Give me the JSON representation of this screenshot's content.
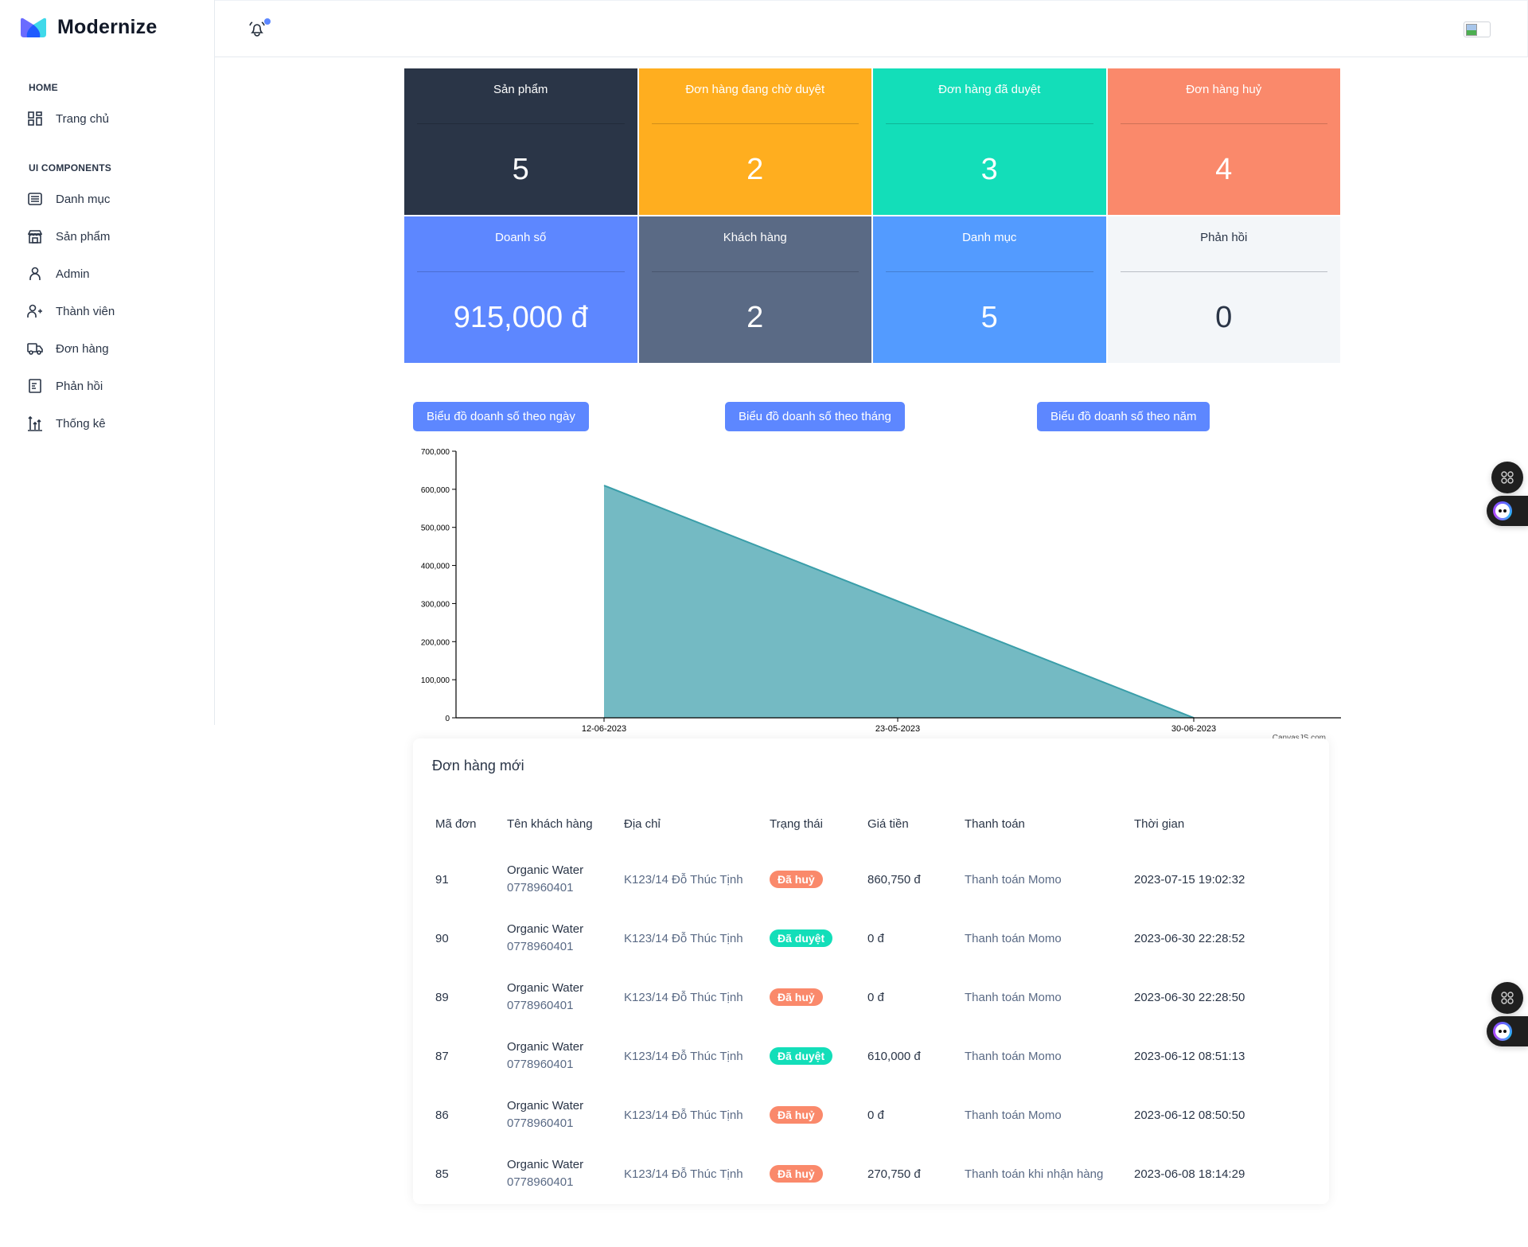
{
  "brand": {
    "name": "Modernize"
  },
  "sidebar": {
    "sections": [
      {
        "caption": "HOME",
        "items": [
          {
            "label": "Trang chủ",
            "icon": "dashboard-icon"
          }
        ]
      },
      {
        "caption": "UI COMPONENTS",
        "items": [
          {
            "label": "Danh mục",
            "icon": "article-icon"
          },
          {
            "label": "Sản phẩm",
            "icon": "building-store-icon"
          },
          {
            "label": "Admin",
            "icon": "user-icon"
          },
          {
            "label": "Thành viên",
            "icon": "user-plus-icon"
          },
          {
            "label": "Đơn hàng",
            "icon": "truck-icon"
          },
          {
            "label": "Phản hồi",
            "icon": "file-description-icon"
          },
          {
            "label": "Thống kê",
            "icon": "chart-arrows-icon"
          }
        ]
      }
    ]
  },
  "header": {
    "notification_icon": "bell-ringing-icon",
    "has_unread": true,
    "avatar": "broken-image-icon"
  },
  "stats": [
    {
      "title": "Sản phẩm",
      "value": "5",
      "bg": "#2a3547",
      "color": "#ffffff"
    },
    {
      "title": "Đơn hàng đang chờ duyệt",
      "value": "2",
      "bg": "#ffae1f",
      "color": "#ffffff"
    },
    {
      "title": "Đơn hàng đã duyệt",
      "value": "3",
      "bg": "#13deb9",
      "color": "#ffffff"
    },
    {
      "title": "Đơn hàng huỷ",
      "value": "4",
      "bg": "#fa896b",
      "color": "#ffffff"
    },
    {
      "title": "Doanh số",
      "value": "915,000 đ",
      "bg": "#5d87ff",
      "color": "#ffffff"
    },
    {
      "title": "Khách hàng",
      "value": "2",
      "bg": "#5a6a85",
      "color": "#ffffff"
    },
    {
      "title": "Danh mục",
      "value": "5",
      "bg": "#539bff",
      "color": "#ffffff"
    },
    {
      "title": "Phản hồi",
      "value": "0",
      "bg": "#f3f6f9",
      "color": "#2a3547"
    }
  ],
  "chart_buttons": [
    {
      "label": "Biểu đồ doanh số theo ngày"
    },
    {
      "label": "Biểu đồ doanh số theo tháng"
    },
    {
      "label": "Biểu đồ doanh số theo năm"
    }
  ],
  "chart_data": {
    "type": "area",
    "title": "",
    "xlabel": "",
    "ylabel": "",
    "categories": [
      "12-06-2023",
      "23-05-2023",
      "30-06-2023"
    ],
    "x_tick_labels": [
      "12-06-2023",
      "23-05-2023",
      "30-06-2023"
    ],
    "series": [
      {
        "name": "Doanh số",
        "x": [
          "12-06-2023",
          "30-06-2023"
        ],
        "values": [
          610000,
          0
        ],
        "color": "#74bac3",
        "line_color": "#3a9ea9"
      }
    ],
    "ylim": [
      0,
      700000
    ],
    "y_ticks": [
      0,
      100000,
      200000,
      300000,
      400000,
      500000,
      600000,
      700000
    ],
    "y_tick_labels": [
      "0",
      "100,000",
      "200,000",
      "300,000",
      "400,000",
      "500,000",
      "600,000",
      "700,000"
    ],
    "grid": false,
    "legend": "none",
    "credit": "CanvasJS.com"
  },
  "orders": {
    "title": "Đơn hàng mới",
    "columns": [
      "Mã đơn",
      "Tên khách hàng",
      "Địa chỉ",
      "Trạng thái",
      "Giá tiền",
      "Thanh toán",
      "Thời gian"
    ],
    "rows": [
      {
        "id": "91",
        "name": "Organic Water",
        "phone": "0778960401",
        "address": "K123/14 Đỗ Thúc Tịnh",
        "status": "Đã huỷ",
        "status_color": "#fa896b",
        "price": "860,750 đ",
        "payment": "Thanh toán Momo",
        "time": "2023-07-15 19:02:32"
      },
      {
        "id": "90",
        "name": "Organic Water",
        "phone": "0778960401",
        "address": "K123/14 Đỗ Thúc Tịnh",
        "status": "Đã duyệt",
        "status_color": "#13deb9",
        "price": "0 đ",
        "payment": "Thanh toán Momo",
        "time": "2023-06-30 22:28:52"
      },
      {
        "id": "89",
        "name": "Organic Water",
        "phone": "0778960401",
        "address": "K123/14 Đỗ Thúc Tịnh",
        "status": "Đã huỷ",
        "status_color": "#fa896b",
        "price": "0 đ",
        "payment": "Thanh toán Momo",
        "time": "2023-06-30 22:28:50"
      },
      {
        "id": "87",
        "name": "Organic Water",
        "phone": "0778960401",
        "address": "K123/14 Đỗ Thúc Tịnh",
        "status": "Đã duyệt",
        "status_color": "#13deb9",
        "price": "610,000 đ",
        "payment": "Thanh toán Momo",
        "time": "2023-06-12 08:51:13"
      },
      {
        "id": "86",
        "name": "Organic Water",
        "phone": "0778960401",
        "address": "K123/14 Đỗ Thúc Tịnh",
        "status": "Đã huỷ",
        "status_color": "#fa896b",
        "price": "0 đ",
        "payment": "Thanh toán Momo",
        "time": "2023-06-12 08:50:50"
      },
      {
        "id": "85",
        "name": "Organic Water",
        "phone": "0778960401",
        "address": "K123/14 Đỗ Thúc Tịnh",
        "status": "Đã huỷ",
        "status_color": "#fa896b",
        "price": "270,750 đ",
        "payment": "Thanh toán khi nhận hàng",
        "time": "2023-06-08 18:14:29"
      }
    ]
  },
  "floating": [
    {
      "icon": "apps-icon"
    },
    {
      "icon": "chatbot-icon"
    },
    {
      "icon": "apps-icon"
    },
    {
      "icon": "chatbot-icon"
    }
  ]
}
